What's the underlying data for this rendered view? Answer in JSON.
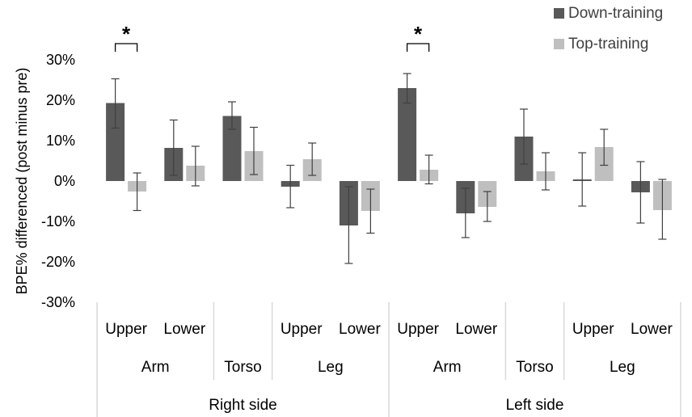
{
  "chart_data": {
    "type": "bar",
    "ylabel": "BPE% differenced (post minus pre)",
    "ylim": [
      -30,
      30
    ],
    "yticks": [
      30,
      20,
      10,
      0,
      -10,
      -20,
      -30
    ],
    "ytick_labels": [
      "30%",
      "20%",
      "10%",
      "0%",
      "-10%",
      "-20%",
      "-30%"
    ],
    "categories": [
      {
        "side": "Right side",
        "region": "Arm",
        "part": "Upper"
      },
      {
        "side": "Right side",
        "region": "Arm",
        "part": "Lower"
      },
      {
        "side": "Right side",
        "region": "Torso",
        "part": ""
      },
      {
        "side": "Right side",
        "region": "Leg",
        "part": "Upper"
      },
      {
        "side": "Right side",
        "region": "Leg",
        "part": "Lower"
      },
      {
        "side": "Left side",
        "region": "Arm",
        "part": "Upper"
      },
      {
        "side": "Left side",
        "region": "Arm",
        "part": "Lower"
      },
      {
        "side": "Left side",
        "region": "Torso",
        "part": ""
      },
      {
        "side": "Left side",
        "region": "Leg",
        "part": "Upper"
      },
      {
        "side": "Left side",
        "region": "Leg",
        "part": "Lower"
      }
    ],
    "series": [
      {
        "name": "Down-training",
        "color": "#595959",
        "values": [
          19.3,
          8.2,
          16.1,
          -1.4,
          -11.0,
          23.0,
          -8.0,
          11.0,
          0.4,
          -2.8
        ],
        "error_low": [
          13.1,
          1.4,
          12.8,
          -6.6,
          -20.4,
          19.3,
          -14.0,
          4.2,
          -6.2,
          -10.4
        ],
        "error_high": [
          25.3,
          15.1,
          19.6,
          3.9,
          -1.4,
          26.6,
          -1.8,
          17.8,
          7.0,
          4.8
        ]
      },
      {
        "name": "Top-training",
        "color": "#bfbfbf",
        "values": [
          -2.6,
          3.8,
          7.4,
          5.4,
          -7.4,
          2.8,
          -6.4,
          2.4,
          8.4,
          -7.2
        ],
        "error_low": [
          -7.3,
          -1.2,
          1.6,
          1.4,
          -12.9,
          -0.7,
          -10.0,
          -2.2,
          3.9,
          -14.4
        ],
        "error_high": [
          2.0,
          8.6,
          13.3,
          9.4,
          -2.0,
          6.4,
          -2.6,
          7.0,
          12.8,
          0.4
        ]
      }
    ],
    "significance": [
      {
        "category_index": 0,
        "label": "*"
      },
      {
        "category_index": 5,
        "label": "*"
      }
    ],
    "legend_position": "top-right",
    "grid": false
  }
}
